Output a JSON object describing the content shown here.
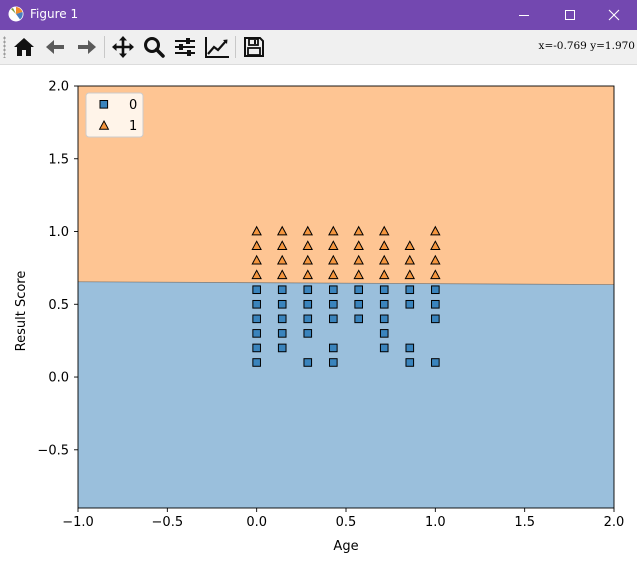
{
  "window": {
    "title": "Figure 1",
    "controls": [
      "minimize",
      "maximize",
      "close"
    ]
  },
  "toolbar": {
    "buttons": [
      {
        "name": "home",
        "icon": "home-icon"
      },
      {
        "name": "back",
        "icon": "arrow-left-icon"
      },
      {
        "name": "forward",
        "icon": "arrow-right-icon"
      },
      {
        "name": "pan",
        "icon": "move-icon"
      },
      {
        "name": "zoom",
        "icon": "zoom-icon"
      },
      {
        "name": "subplots",
        "icon": "sliders-icon"
      },
      {
        "name": "customize",
        "icon": "line-chart-icon"
      },
      {
        "name": "save",
        "icon": "save-icon"
      }
    ],
    "coordinates": "x=-0.769 y=1.970"
  },
  "chart_data": {
    "type": "scatter",
    "xlabel": "Age",
    "ylabel": "Result Score",
    "xlim": [
      -1.0,
      2.0
    ],
    "ylim": [
      -0.9,
      2.0
    ],
    "xticks": [
      "−1.0",
      "−0.5",
      "0.0",
      "0.5",
      "1.0",
      "1.5",
      "2.0"
    ],
    "yticks": [
      "−0.5",
      "0.0",
      "0.5",
      "1.0",
      "1.5",
      "2.0"
    ],
    "legend": {
      "placement": "upper-left",
      "entries": [
        "0",
        "1"
      ]
    },
    "decision_boundary": {
      "x": [
        -1.0,
        2.0
      ],
      "y": [
        0.655,
        0.635
      ]
    },
    "regions": {
      "class_1_color": "#fec593",
      "class_0_color": "#9abfdc"
    },
    "series": [
      {
        "name": "0",
        "marker": "square",
        "color": "#3a84bd",
        "points": [
          [
            0.0,
            0.1
          ],
          [
            0.0,
            0.2
          ],
          [
            0.0,
            0.3
          ],
          [
            0.0,
            0.4
          ],
          [
            0.0,
            0.5
          ],
          [
            0.0,
            0.6
          ],
          [
            0.143,
            0.2
          ],
          [
            0.143,
            0.3
          ],
          [
            0.143,
            0.4
          ],
          [
            0.143,
            0.5
          ],
          [
            0.143,
            0.6
          ],
          [
            0.286,
            0.1
          ],
          [
            0.286,
            0.3
          ],
          [
            0.286,
            0.4
          ],
          [
            0.286,
            0.5
          ],
          [
            0.286,
            0.6
          ],
          [
            0.429,
            0.1
          ],
          [
            0.429,
            0.2
          ],
          [
            0.429,
            0.4
          ],
          [
            0.429,
            0.5
          ],
          [
            0.429,
            0.6
          ],
          [
            0.571,
            0.4
          ],
          [
            0.571,
            0.5
          ],
          [
            0.571,
            0.6
          ],
          [
            0.714,
            0.2
          ],
          [
            0.714,
            0.3
          ],
          [
            0.714,
            0.4
          ],
          [
            0.714,
            0.5
          ],
          [
            0.714,
            0.6
          ],
          [
            0.857,
            0.1
          ],
          [
            0.857,
            0.2
          ],
          [
            0.857,
            0.5
          ],
          [
            0.857,
            0.6
          ],
          [
            1.0,
            0.1
          ],
          [
            1.0,
            0.4
          ],
          [
            1.0,
            0.5
          ],
          [
            1.0,
            0.6
          ]
        ]
      },
      {
        "name": "1",
        "marker": "triangle",
        "color": "#f5963e",
        "points": [
          [
            0.0,
            0.7
          ],
          [
            0.0,
            0.8
          ],
          [
            0.0,
            0.9
          ],
          [
            0.0,
            1.0
          ],
          [
            0.143,
            0.7
          ],
          [
            0.143,
            0.8
          ],
          [
            0.143,
            0.9
          ],
          [
            0.143,
            1.0
          ],
          [
            0.286,
            0.7
          ],
          [
            0.286,
            0.8
          ],
          [
            0.286,
            0.9
          ],
          [
            0.286,
            1.0
          ],
          [
            0.429,
            0.7
          ],
          [
            0.429,
            0.8
          ],
          [
            0.429,
            0.9
          ],
          [
            0.429,
            1.0
          ],
          [
            0.571,
            0.7
          ],
          [
            0.571,
            0.8
          ],
          [
            0.571,
            0.9
          ],
          [
            0.571,
            1.0
          ],
          [
            0.714,
            0.7
          ],
          [
            0.714,
            0.8
          ],
          [
            0.714,
            0.9
          ],
          [
            0.714,
            1.0
          ],
          [
            0.857,
            0.7
          ],
          [
            0.857,
            0.8
          ],
          [
            0.857,
            0.9
          ],
          [
            1.0,
            0.7
          ],
          [
            1.0,
            0.8
          ],
          [
            1.0,
            0.9
          ],
          [
            1.0,
            1.0
          ]
        ]
      }
    ]
  }
}
